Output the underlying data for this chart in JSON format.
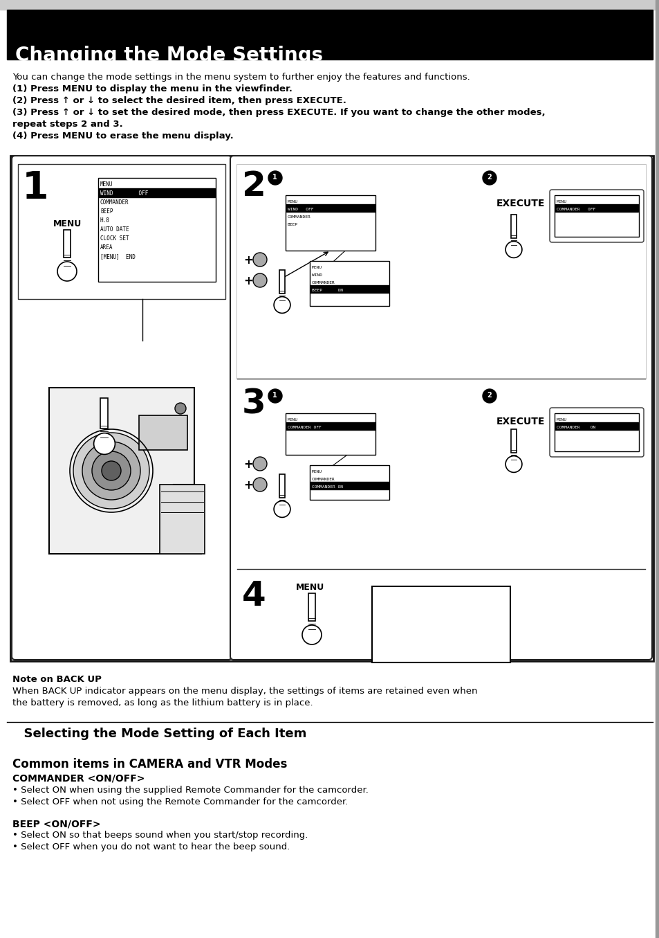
{
  "bg_color": "#ffffff",
  "title_bg": "#000000",
  "title_text": "Changing the Mode Settings",
  "title_color": "#ffffff",
  "title_fontsize": 20,
  "body_fontsize": 9.5,
  "intro_line0": "You can change the mode settings in the menu system to further enjoy the features and functions.",
  "intro_line1": "(1) Press MENU to display the menu in the viewfinder.",
  "intro_line2": "(2) Press ↑ or ↓ to select the desired item, then press EXECUTE.",
  "intro_line3": "(3) Press ↑ or ↓ to set the desired mode, then press EXECUTE. If you want to change the other modes,",
  "intro_line4": "repeat steps 2 and 3.",
  "intro_line5": "(4) Press MENU to erase the menu display.",
  "note_title": "Note on BACK UP",
  "note_body1": "When BACK UP indicator appears on the menu display, the settings of items are retained even when",
  "note_body2": "the battery is removed, as long as the lithium battery is in place.",
  "section2_title": "Selecting the Mode Setting of Each Item",
  "section3_title": "Common items in CAMERA and VTR Modes",
  "commander_title": "COMMANDER <ON/OFF>",
  "cmd_bullet1": "Select ON when using the supplied Remote Commander for the camcorder.",
  "cmd_bullet2": "Select OFF when not using the Remote Commander for the camcorder.",
  "beep_title": "BEEP <ON/OFF>",
  "beep_bullet1": "Select ON so that beeps sound when you start/stop recording.",
  "beep_bullet2": "Select OFF when you do not want to hear the beep sound."
}
